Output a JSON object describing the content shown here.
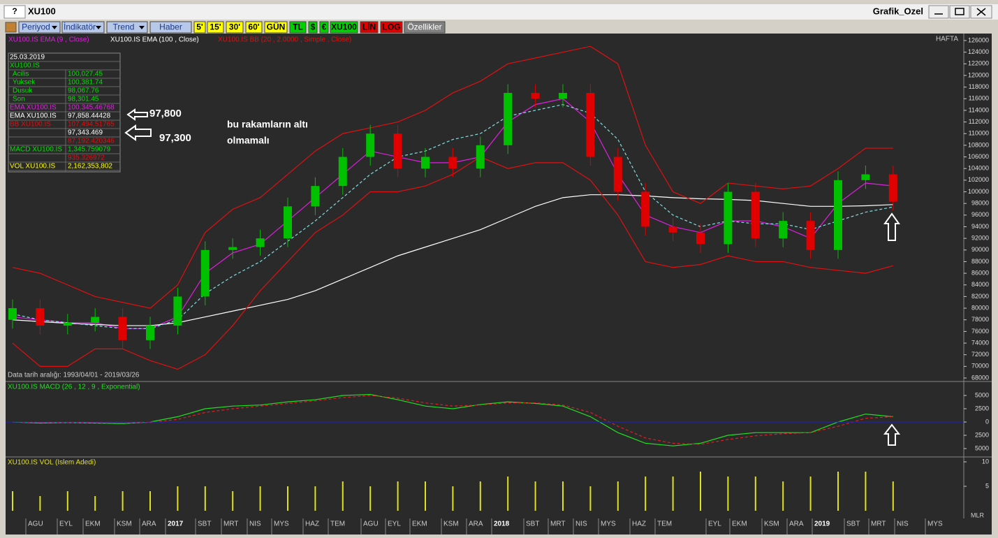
{
  "window": {
    "help": "?",
    "title": "XU100",
    "name": "Grafik_Ozel"
  },
  "toolbar": [
    "Periyod",
    "İndikatör",
    "Trend",
    "Haber",
    "5'",
    "15'",
    "30'",
    "60'",
    "GÜN",
    "TL",
    "$",
    "€",
    "XU100",
    "LİN",
    "LOG",
    "Özellikler"
  ],
  "info_panel": [
    [
      "25.03.2019",
      ""
    ],
    [
      "XU100.IS",
      ""
    ],
    [
      "Acilis",
      "100,027.45"
    ],
    [
      "Yuksek",
      "100,381.74"
    ],
    [
      "Dusuk",
      "98,067.76"
    ],
    [
      "Son",
      "98,301.45"
    ],
    [
      "EMA XU100.IS",
      "100,345.46768"
    ],
    [
      "EMA XU100.IS",
      "97,858.44428"
    ],
    [
      "BB XU100.IS",
      "107,494.51765"
    ],
    [
      "",
      "97,343.469"
    ],
    [
      "",
      "87,192.420346"
    ],
    [
      "MACD XU100.IS",
      "1,345.759079"
    ],
    [
      "",
      "935.326972"
    ],
    [
      "VOL XU100.IS",
      "2,162,353,802"
    ]
  ],
  "annotations": {
    "upper_value": "97,800",
    "lower_value": "97,300",
    "note_line1": "bu rakamların altı",
    "note_line2": "olmamalı",
    "period": "HAFTA",
    "date_range": "Data tarih aralığı: 1993/04/01 - 2019/03/26",
    "corner": "MLR"
  },
  "x_labels": [
    "AGU",
    "EYL",
    "EKM",
    "KSM",
    "ARA",
    "2017",
    "SBT",
    "MRT",
    "NIS",
    "MYS",
    "HAZ",
    "TEM",
    "AGU",
    "EYL",
    "EKM",
    "KSM",
    "ARA",
    "2018",
    "SBT",
    "MRT",
    "NIS",
    "MYS",
    "HAZ",
    "TEM",
    "EYL",
    "EKM",
    "KSM",
    "ARA",
    "2019",
    "SBT",
    "MRT",
    "NIS",
    "MYS"
  ],
  "chart_data": [
    {
      "type": "candlestick",
      "legend": [
        "XU100.IS EMA (9 , Close)",
        "XU100.IS EMA (100 , Close)",
        "XU100.IS BB (20 , 2.0000 , Simple , Close)"
      ],
      "open": [
        78000,
        80000,
        77000,
        77500,
        78500,
        74500,
        77000,
        82000,
        90000,
        90500,
        92000,
        97500,
        101000,
        106000,
        110000,
        104000,
        106000,
        104000,
        108000,
        117000,
        116000,
        117000,
        106000,
        100000,
        94000,
        93000,
        91000,
        100000,
        92000,
        95000,
        90000,
        102000,
        103000
      ],
      "high": [
        81500,
        81500,
        79000,
        80000,
        80000,
        78500,
        83500,
        91500,
        92000,
        93500,
        99000,
        102500,
        107500,
        111500,
        111500,
        107500,
        107500,
        109500,
        118500,
        118500,
        118500,
        118500,
        107500,
        101500,
        95500,
        94500,
        101500,
        101500,
        96500,
        96500,
        103500,
        104500,
        104500
      ],
      "low": [
        76500,
        75500,
        75500,
        76000,
        73000,
        73000,
        75500,
        80500,
        88500,
        89000,
        90500,
        96000,
        99500,
        104500,
        102500,
        102500,
        102500,
        102500,
        106500,
        114500,
        114500,
        104500,
        98500,
        92500,
        91500,
        89500,
        89500,
        90500,
        90500,
        88500,
        88500,
        100500,
        96800
      ],
      "close": [
        80000,
        77000,
        77500,
        78500,
        74500,
        77000,
        82000,
        90000,
        90500,
        92000,
        97500,
        101000,
        106000,
        110000,
        104000,
        106000,
        104000,
        108000,
        117000,
        116000,
        117000,
        106000,
        100000,
        94000,
        93000,
        91000,
        100000,
        92000,
        95000,
        90000,
        102000,
        103000,
        98300
      ],
      "up_color": "#00c000",
      "down_color": "#e00000",
      "lines": [
        {
          "color": "#e020e0",
          "values": [
            78500,
            78000,
            77500,
            77500,
            76500,
            76500,
            78500,
            86000,
            89500,
            91000,
            95000,
            99000,
            103000,
            107000,
            106000,
            105000,
            105000,
            106000,
            112000,
            115000,
            116000,
            112000,
            103000,
            96000,
            94000,
            93000,
            95000,
            95000,
            94000,
            92000,
            98000,
            101500,
            101000
          ]
        },
        {
          "color": "#ffffff",
          "values": [
            78000,
            77700,
            77400,
            77200,
            77000,
            77000,
            77500,
            78500,
            79500,
            80500,
            81500,
            83000,
            85000,
            87000,
            89000,
            90500,
            92000,
            93500,
            95500,
            97500,
            99000,
            99500,
            99500,
            99300,
            99000,
            98800,
            98700,
            98500,
            98000,
            97500,
            97500,
            97600,
            97800
          ]
        },
        {
          "color": "#e01010",
          "values": [
            87000,
            86000,
            84000,
            82000,
            81000,
            80000,
            84000,
            93000,
            97000,
            99000,
            103000,
            107000,
            110000,
            111000,
            112000,
            114000,
            117000,
            119000,
            122000,
            123000,
            124000,
            125000,
            122000,
            108000,
            100000,
            98000,
            101500,
            101000,
            100500,
            101000,
            104000,
            107500,
            107500
          ]
        },
        {
          "color": "#80e0e0",
          "dashed": true,
          "values": [
            79000,
            78000,
            77500,
            77000,
            76500,
            76500,
            78000,
            82500,
            85500,
            88000,
            91500,
            95000,
            99000,
            103000,
            106000,
            107000,
            109000,
            110000,
            113000,
            114000,
            115000,
            113500,
            109000,
            100000,
            96000,
            94000,
            95000,
            94500,
            94500,
            93500,
            95000,
            96500,
            97400
          ]
        },
        {
          "color": "#e01010",
          "values": [
            74000,
            70000,
            70000,
            73000,
            73000,
            71000,
            69500,
            72000,
            77000,
            83000,
            88000,
            93000,
            96000,
            100000,
            100000,
            101000,
            103000,
            106000,
            104000,
            105000,
            105000,
            102000,
            96000,
            88000,
            87000,
            87500,
            89000,
            88000,
            88000,
            87000,
            86500,
            86000,
            87300
          ]
        }
      ],
      "ylim": [
        68000,
        126000
      ],
      "yticks": [
        68000,
        70000,
        72000,
        74000,
        76000,
        78000,
        80000,
        82000,
        84000,
        86000,
        88000,
        90000,
        92000,
        94000,
        96000,
        98000,
        100000,
        102000,
        104000,
        106000,
        108000,
        110000,
        112000,
        114000,
        116000,
        118000,
        120000,
        122000,
        124000,
        126000
      ]
    },
    {
      "type": "line",
      "title": "XU100.IS MACD (26 , 12 , 9 , Exponential)",
      "series": [
        {
          "color": "#20e020",
          "values": [
            0,
            -200,
            -100,
            -200,
            -300,
            0,
            1000,
            2500,
            3000,
            3200,
            3800,
            4200,
            5000,
            5200,
            4200,
            3000,
            2500,
            3300,
            3800,
            3500,
            3000,
            1000,
            -2000,
            -4000,
            -4500,
            -4000,
            -2500,
            -2000,
            -2000,
            -2000,
            0,
            1500,
            1000
          ]
        },
        {
          "color": "#e02020",
          "dashed": true,
          "values": [
            0,
            -100,
            -100,
            -150,
            -200,
            -100,
            500,
            1800,
            2500,
            3000,
            3500,
            4000,
            4600,
            5000,
            4500,
            3600,
            3000,
            3200,
            3600,
            3600,
            3200,
            1800,
            -800,
            -3000,
            -4000,
            -4200,
            -3300,
            -2600,
            -2200,
            -2000,
            -800,
            700,
            1000
          ]
        }
      ],
      "ylim": [
        -5000,
        5000
      ],
      "yticks": [
        {
          "value": -5000,
          "label": "5000"
        },
        {
          "value": -2500,
          "label": "2500"
        },
        0,
        2500,
        5000
      ],
      "zero_color": "#2020d0"
    },
    {
      "type": "bar",
      "title": "XU100.IS VOL (Islem Adedi)",
      "color": "#e0e020",
      "values": [
        4,
        3,
        4,
        3,
        4,
        4,
        5,
        5,
        4,
        5,
        5,
        5,
        6,
        5,
        6,
        6,
        5,
        6,
        7,
        6,
        6,
        5,
        6,
        7,
        7,
        8,
        7,
        7,
        6,
        7,
        8,
        8,
        6
      ],
      "ylim": [
        0,
        10
      ],
      "yticks": [
        5,
        10
      ]
    }
  ]
}
